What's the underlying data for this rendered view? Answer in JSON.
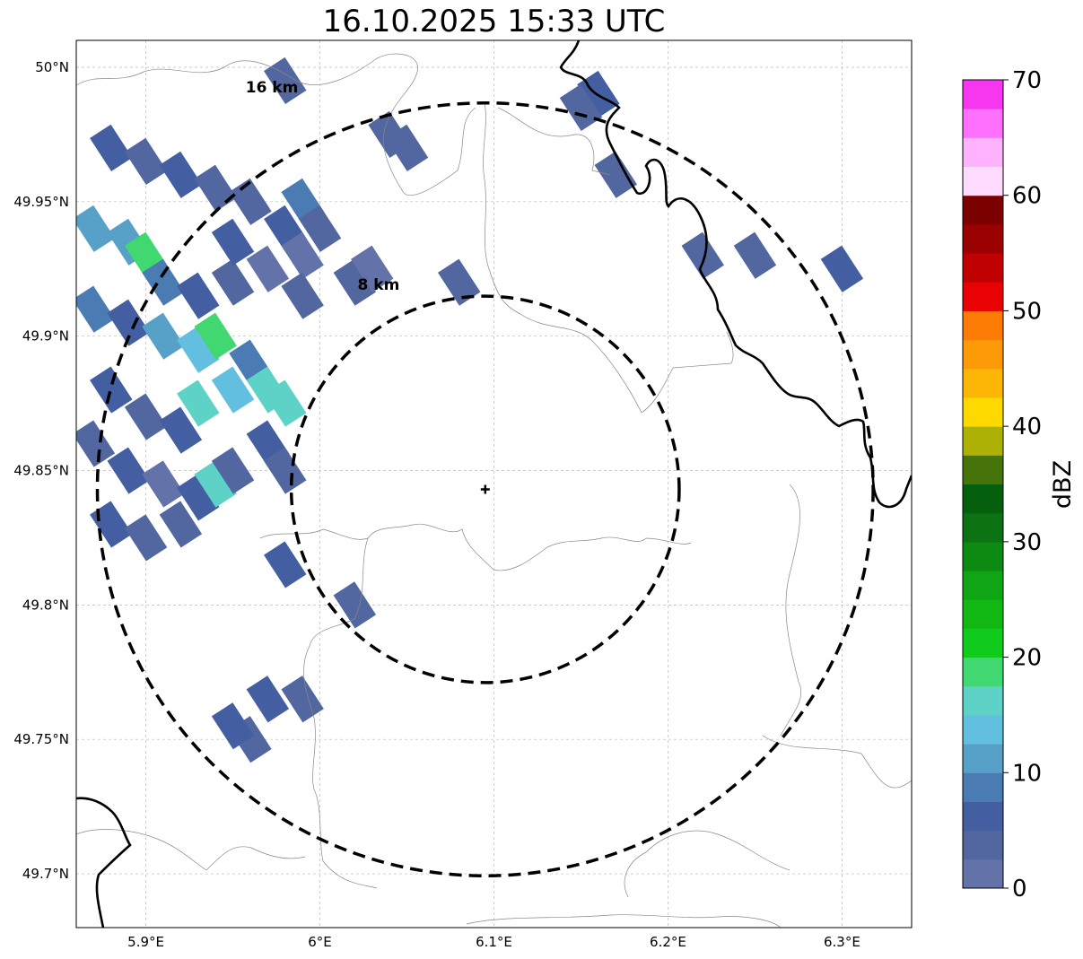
{
  "title": "16.10.2025 15:33 UTC",
  "map": {
    "lon_range": [
      5.86,
      6.34
    ],
    "lat_range": [
      49.68,
      50.01
    ],
    "radar_site": {
      "lon": 6.095,
      "lat": 49.843
    },
    "rings": [
      {
        "label": "8 km",
        "radius_km": 8
      },
      {
        "label": "16 km",
        "radius_km": 16
      }
    ],
    "lon_ticks": [
      {
        "value": 5.9,
        "label": "5.9°E"
      },
      {
        "value": 6.0,
        "label": "6°E"
      },
      {
        "value": 6.1,
        "label": "6.1°E"
      },
      {
        "value": 6.2,
        "label": "6.2°E"
      },
      {
        "value": 6.3,
        "label": "6.3°E"
      }
    ],
    "lat_ticks": [
      {
        "value": 50.0,
        "label": "50°N"
      },
      {
        "value": 49.95,
        "label": "49.95°N"
      },
      {
        "value": 49.9,
        "label": "49.9°N"
      },
      {
        "value": 49.85,
        "label": "49.85°N"
      },
      {
        "value": 49.8,
        "label": "49.8°N"
      },
      {
        "value": 49.75,
        "label": "49.75°N"
      },
      {
        "value": 49.7,
        "label": "49.7°N"
      }
    ],
    "grid": true,
    "reflectivity_cells": [
      {
        "lon": 5.88,
        "lat": 49.97,
        "dbz": 5
      },
      {
        "lon": 5.9,
        "lat": 49.965,
        "dbz": 3
      },
      {
        "lon": 5.92,
        "lat": 49.96,
        "dbz": 6
      },
      {
        "lon": 5.94,
        "lat": 49.955,
        "dbz": 4
      },
      {
        "lon": 5.96,
        "lat": 49.95,
        "dbz": 3
      },
      {
        "lon": 5.98,
        "lat": 49.94,
        "dbz": 5
      },
      {
        "lon": 5.99,
        "lat": 49.93,
        "dbz": 2
      },
      {
        "lon": 5.87,
        "lat": 49.94,
        "dbz": 12
      },
      {
        "lon": 5.89,
        "lat": 49.935,
        "dbz": 10
      },
      {
        "lon": 5.9,
        "lat": 49.93,
        "dbz": 18
      },
      {
        "lon": 5.91,
        "lat": 49.92,
        "dbz": 8
      },
      {
        "lon": 5.93,
        "lat": 49.915,
        "dbz": 6
      },
      {
        "lon": 5.95,
        "lat": 49.92,
        "dbz": 4
      },
      {
        "lon": 5.87,
        "lat": 49.91,
        "dbz": 9
      },
      {
        "lon": 5.89,
        "lat": 49.905,
        "dbz": 7
      },
      {
        "lon": 5.91,
        "lat": 49.9,
        "dbz": 11
      },
      {
        "lon": 5.93,
        "lat": 49.895,
        "dbz": 13
      },
      {
        "lon": 5.94,
        "lat": 49.9,
        "dbz": 19
      },
      {
        "lon": 5.96,
        "lat": 49.89,
        "dbz": 8
      },
      {
        "lon": 5.97,
        "lat": 49.88,
        "dbz": 15
      },
      {
        "lon": 5.98,
        "lat": 49.875,
        "dbz": 16
      },
      {
        "lon": 5.95,
        "lat": 49.88,
        "dbz": 13
      },
      {
        "lon": 5.93,
        "lat": 49.875,
        "dbz": 17
      },
      {
        "lon": 5.88,
        "lat": 49.88,
        "dbz": 6
      },
      {
        "lon": 5.9,
        "lat": 49.87,
        "dbz": 4
      },
      {
        "lon": 5.92,
        "lat": 49.865,
        "dbz": 7
      },
      {
        "lon": 5.87,
        "lat": 49.86,
        "dbz": 3
      },
      {
        "lon": 5.89,
        "lat": 49.85,
        "dbz": 5
      },
      {
        "lon": 5.91,
        "lat": 49.845,
        "dbz": 2
      },
      {
        "lon": 5.93,
        "lat": 49.84,
        "dbz": 6
      },
      {
        "lon": 5.94,
        "lat": 49.845,
        "dbz": 15
      },
      {
        "lon": 5.95,
        "lat": 49.85,
        "dbz": 3
      },
      {
        "lon": 5.97,
        "lat": 49.86,
        "dbz": 7
      },
      {
        "lon": 5.98,
        "lat": 49.85,
        "dbz": 4
      },
      {
        "lon": 5.88,
        "lat": 49.83,
        "dbz": 5
      },
      {
        "lon": 5.9,
        "lat": 49.825,
        "dbz": 3
      },
      {
        "lon": 5.92,
        "lat": 49.83,
        "dbz": 4
      },
      {
        "lon": 5.99,
        "lat": 49.95,
        "dbz": 9
      },
      {
        "lon": 6.0,
        "lat": 49.94,
        "dbz": 3
      },
      {
        "lon": 6.02,
        "lat": 49.92,
        "dbz": 4
      },
      {
        "lon": 6.03,
        "lat": 49.925,
        "dbz": 2
      },
      {
        "lon": 6.08,
        "lat": 49.92,
        "dbz": 3
      },
      {
        "lon": 6.04,
        "lat": 49.975,
        "dbz": 4
      },
      {
        "lon": 6.05,
        "lat": 49.97,
        "dbz": 3
      },
      {
        "lon": 5.95,
        "lat": 49.935,
        "dbz": 5
      },
      {
        "lon": 5.97,
        "lat": 49.925,
        "dbz": 2
      },
      {
        "lon": 5.99,
        "lat": 49.915,
        "dbz": 3
      },
      {
        "lon": 6.02,
        "lat": 49.8,
        "dbz": 4
      },
      {
        "lon": 5.98,
        "lat": 49.815,
        "dbz": 5
      },
      {
        "lon": 5.97,
        "lat": 49.765,
        "dbz": 6
      },
      {
        "lon": 5.96,
        "lat": 49.75,
        "dbz": 4
      },
      {
        "lon": 5.95,
        "lat": 49.755,
        "dbz": 7
      },
      {
        "lon": 5.99,
        "lat": 49.765,
        "dbz": 3
      },
      {
        "lon": 6.16,
        "lat": 49.99,
        "dbz": 6
      },
      {
        "lon": 6.15,
        "lat": 49.985,
        "dbz": 4
      },
      {
        "lon": 6.22,
        "lat": 49.93,
        "dbz": 3
      },
      {
        "lon": 6.25,
        "lat": 49.93,
        "dbz": 4
      },
      {
        "lon": 6.3,
        "lat": 49.925,
        "dbz": 5
      },
      {
        "lon": 6.17,
        "lat": 49.96,
        "dbz": 3
      },
      {
        "lon": 5.98,
        "lat": 49.995,
        "dbz": 4
      }
    ]
  },
  "colorbar": {
    "label": "dBZ",
    "min": 0,
    "max": 70,
    "step": 2.5,
    "tick_values": [
      0,
      10,
      20,
      30,
      40,
      50,
      60,
      70
    ],
    "tick_labels": [
      "0",
      "10",
      "20",
      "30",
      "40",
      "50",
      "60",
      "70"
    ],
    "colors": [
      "#6372a8",
      "#52679f",
      "#445ea2",
      "#4a7bb2",
      "#57a0c8",
      "#63bfe0",
      "#5ed2c7",
      "#41d871",
      "#0fcb1b",
      "#11b814",
      "#0fa514",
      "#0d8a12",
      "#0c7212",
      "#05600e",
      "#46740b",
      "#aeb105",
      "#fdd900",
      "#fdb506",
      "#fd9a07",
      "#fd7c05",
      "#e80204",
      "#c00102",
      "#9c0101",
      "#7b0101",
      "#ffdcff",
      "#ffb3ff",
      "#ff70ff",
      "#f737f0"
    ]
  }
}
